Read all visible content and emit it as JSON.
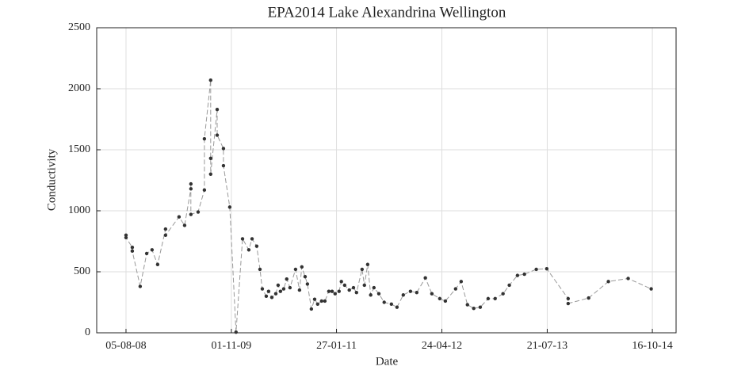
{
  "chart_data": {
    "type": "line",
    "title": "EPA2014 Lake Alexandrina Wellington",
    "xlabel": "Date",
    "ylabel": "Conductivity",
    "x": [
      "2008-08-05",
      "2008-08-05",
      "2008-09-01",
      "2008-09-01",
      "2008-10-05",
      "2008-11-02",
      "2008-11-25",
      "2008-12-19",
      "2009-01-22",
      "2009-01-22",
      "2009-03-21",
      "2009-04-14",
      "2009-05-11",
      "2009-05-11",
      "2009-05-11",
      "2009-06-11",
      "2009-07-08",
      "2009-07-08",
      "2009-08-04",
      "2009-08-04",
      "2009-08-04",
      "2009-09-01",
      "2009-09-01",
      "2009-09-28",
      "2009-09-28",
      "2009-10-25",
      "2009-11-21",
      "2009-12-19",
      "2010-01-15",
      "2010-01-29",
      "2010-02-18",
      "2010-03-04",
      "2010-03-14",
      "2010-03-31",
      "2010-04-10",
      "2010-04-24",
      "2010-05-11",
      "2010-05-21",
      "2010-05-31",
      "2010-06-14",
      "2010-06-27",
      "2010-07-11",
      "2010-08-04",
      "2010-08-21",
      "2010-08-31",
      "2010-09-14",
      "2010-09-24",
      "2010-10-11",
      "2010-10-25",
      "2010-11-07",
      "2010-11-24",
      "2010-12-08",
      "2010-12-25",
      "2011-01-08",
      "2011-01-21",
      "2011-02-07",
      "2011-02-17",
      "2011-03-03",
      "2011-03-23",
      "2011-04-10",
      "2011-04-23",
      "2011-05-17",
      "2011-05-27",
      "2011-06-10",
      "2011-06-23",
      "2011-07-07",
      "2011-07-28",
      "2011-08-20",
      "2011-09-20",
      "2011-10-14",
      "2011-11-10",
      "2011-12-11",
      "2012-01-07",
      "2012-02-13",
      "2012-03-12",
      "2012-04-15",
      "2012-05-09",
      "2012-06-22",
      "2012-07-16",
      "2012-08-12",
      "2012-09-08",
      "2012-10-06",
      "2012-11-09",
      "2012-12-09",
      "2013-01-12",
      "2013-02-08",
      "2013-03-15",
      "2013-04-14",
      "2013-06-04",
      "2013-07-19",
      "2013-10-19",
      "2013-10-19",
      "2014-01-15",
      "2014-04-10",
      "2014-07-04",
      "2014-10-11"
    ],
    "values": [
      800,
      780,
      700,
      670,
      380,
      650,
      680,
      560,
      850,
      800,
      950,
      880,
      1180,
      1220,
      970,
      990,
      1170,
      1590,
      2070,
      1430,
      1300,
      1830,
      1620,
      1510,
      1370,
      1030,
      5,
      770,
      680,
      770,
      710,
      520,
      360,
      300,
      340,
      290,
      320,
      390,
      340,
      360,
      440,
      370,
      520,
      350,
      540,
      460,
      400,
      195,
      275,
      235,
      260,
      260,
      340,
      340,
      320,
      340,
      420,
      390,
      350,
      370,
      330,
      520,
      390,
      560,
      310,
      370,
      320,
      250,
      235,
      210,
      310,
      340,
      330,
      450,
      320,
      280,
      260,
      360,
      420,
      230,
      200,
      210,
      280,
      280,
      320,
      390,
      470,
      480,
      520,
      525,
      280,
      240,
      285,
      420,
      445,
      360
    ],
    "color": "#333333",
    "line_color": "#999999",
    "xlim": [
      "2008-04-01",
      "2015-01-26"
    ],
    "xticks": [
      {
        "value": "2008-08-05",
        "label": "05-08-08"
      },
      {
        "value": "2009-11-01",
        "label": "01-11-09"
      },
      {
        "value": "2011-01-27",
        "label": "27-01-11"
      },
      {
        "value": "2012-04-24",
        "label": "24-04-12"
      },
      {
        "value": "2013-07-21",
        "label": "21-07-13"
      },
      {
        "value": "2014-10-16",
        "label": "16-10-14"
      }
    ],
    "ylim": [
      0,
      2500
    ],
    "yticks": [
      0,
      500,
      1000,
      1500,
      2000,
      2500
    ],
    "grid": true
  }
}
